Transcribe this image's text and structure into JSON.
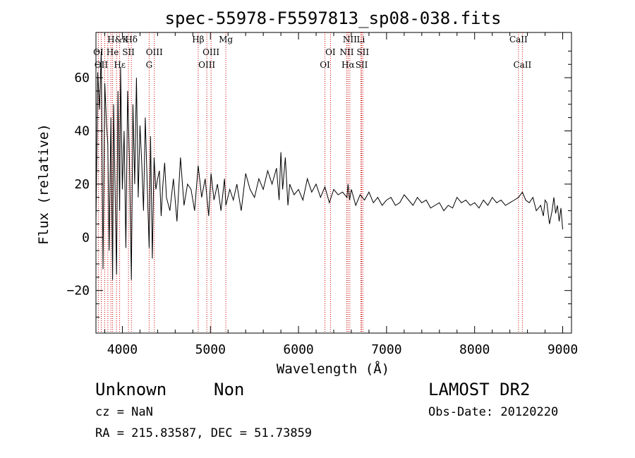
{
  "chart_data": {
    "type": "line",
    "title": "spec-55978-F5597813_sp08-038.fits",
    "xlabel": "Wavelength (Å)",
    "ylabel": "Flux (relative)",
    "xlim": [
      3700,
      9100
    ],
    "ylim": [
      -36,
      77
    ],
    "x_ticks": [
      4000,
      5000,
      6000,
      7000,
      8000,
      9000
    ],
    "y_ticks": [
      -20,
      0,
      20,
      40,
      60
    ],
    "x_tick_labels": [
      "4000",
      "5000",
      "6000",
      "7000",
      "8000",
      "9000"
    ],
    "y_tick_labels": [
      "−20",
      "0",
      "20",
      "40",
      "60"
    ],
    "grid": false,
    "color": "#000000",
    "marker_color": "#cc0000",
    "series": [
      {
        "x": [
          3700,
          3720,
          3740,
          3760,
          3780,
          3800,
          3820,
          3835,
          3850,
          3870,
          3889,
          3900,
          3920,
          3934,
          3950,
          3969,
          3980,
          4000,
          4020,
          4040,
          4060,
          4080,
          4102,
          4120,
          4140,
          4160,
          4180,
          4200,
          4220,
          4240,
          4260,
          4280,
          4304,
          4320,
          4340,
          4360,
          4380,
          4400,
          4420,
          4440,
          4460,
          4480,
          4500,
          4540,
          4580,
          4620,
          4660,
          4700,
          4740,
          4780,
          4820,
          4861,
          4900,
          4940,
          4980,
          5007,
          5040,
          5080,
          5120,
          5160,
          5175,
          5220,
          5260,
          5300,
          5350,
          5400,
          5450,
          5500,
          5550,
          5600,
          5650,
          5700,
          5750,
          5780,
          5800,
          5820,
          5850,
          5880,
          5900,
          5950,
          6000,
          6050,
          6100,
          6150,
          6200,
          6250,
          6300,
          6350,
          6400,
          6450,
          6500,
          6550,
          6563,
          6580,
          6600,
          6650,
          6700,
          6750,
          6800,
          6850,
          6900,
          6950,
          7000,
          7050,
          7100,
          7150,
          7200,
          7250,
          7300,
          7350,
          7400,
          7450,
          7500,
          7550,
          7600,
          7650,
          7700,
          7750,
          7800,
          7850,
          7900,
          7950,
          8000,
          8050,
          8100,
          8150,
          8200,
          8250,
          8300,
          8350,
          8400,
          8450,
          8498,
          8542,
          8580,
          8620,
          8662,
          8700,
          8750,
          8780,
          8800,
          8820,
          8850,
          8880,
          8900,
          8920,
          8940,
          8960,
          8980,
          9000
        ],
        "y": [
          5,
          62,
          48,
          70,
          -12,
          58,
          42,
          35,
          -5,
          45,
          -16,
          50,
          12,
          -14,
          55,
          10,
          64,
          18,
          40,
          -4,
          55,
          30,
          -16,
          50,
          20,
          60,
          15,
          42,
          28,
          10,
          45,
          22,
          -4,
          38,
          -8,
          30,
          18,
          22,
          25,
          8,
          20,
          28,
          15,
          10,
          22,
          6,
          30,
          12,
          20,
          18,
          10,
          27,
          15,
          22,
          8,
          24,
          14,
          20,
          10,
          22,
          12,
          18,
          14,
          20,
          10,
          24,
          18,
          15,
          22,
          18,
          25,
          20,
          26,
          14,
          32,
          18,
          30,
          12,
          20,
          16,
          18,
          14,
          22,
          17,
          20,
          15,
          19,
          13,
          18,
          16,
          17,
          15,
          20,
          14,
          18,
          12,
          16,
          14,
          17,
          13,
          15,
          12,
          14,
          15,
          12,
          13,
          16,
          14,
          12,
          15,
          13,
          14,
          11,
          12,
          13,
          10,
          12,
          11,
          15,
          13,
          14,
          12,
          13,
          11,
          14,
          12,
          15,
          13,
          14,
          12,
          13,
          14,
          15,
          17,
          14,
          13,
          15,
          10,
          12,
          8,
          14,
          13,
          5,
          10,
          15,
          9,
          12,
          6,
          11,
          3
        ]
      }
    ],
    "line_markers": {
      "top_row": [
        {
          "label": "H&K",
          "x": 3950
        },
        {
          "label": "Hδ",
          "x": 4102
        },
        {
          "label": "Hβ",
          "x": 4861
        },
        {
          "label": "Mg",
          "x": 5175
        },
        {
          "label": "NII",
          "x": 6583
        },
        {
          "label": "Li",
          "x": 6708
        },
        {
          "label": "CaII",
          "x": 8498
        }
      ],
      "middle_row": [
        {
          "label": "OI",
          "x": 3727
        },
        {
          "label": "He",
          "x": 3889
        },
        {
          "label": "SII",
          "x": 4069
        },
        {
          "label": "OIII",
          "x": 4363
        },
        {
          "label": "OIII",
          "x": 5007
        },
        {
          "label": "OI",
          "x": 6363
        },
        {
          "label": "NII",
          "x": 6548
        },
        {
          "label": "SII",
          "x": 6731
        }
      ],
      "bottom_row": [
        {
          "label": "OII",
          "x": 3760
        },
        {
          "label": "Hε",
          "x": 3970
        },
        {
          "label": "G",
          "x": 4304
        },
        {
          "label": "OIII",
          "x": 4959
        },
        {
          "label": "OI",
          "x": 6300
        },
        {
          "label": "Hα",
          "x": 6563
        },
        {
          "label": "SII",
          "x": 6717
        },
        {
          "label": "CaII",
          "x": 8542
        }
      ],
      "lines_x": [
        3727,
        3760,
        3800,
        3835,
        3870,
        3889,
        3934,
        3969,
        4069,
        4102,
        4304,
        4363,
        4861,
        4959,
        5007,
        5175,
        6300,
        6363,
        6548,
        6563,
        6583,
        6708,
        6717,
        6731,
        8498,
        8542
      ]
    }
  },
  "info": {
    "object_class": "Unknown",
    "subclass": "Non",
    "survey": "LAMOST DR2",
    "cz": "cz = NaN",
    "obs_date": "Obs-Date: 20120220",
    "coords": "RA = 215.83587, DEC =  51.73859"
  }
}
